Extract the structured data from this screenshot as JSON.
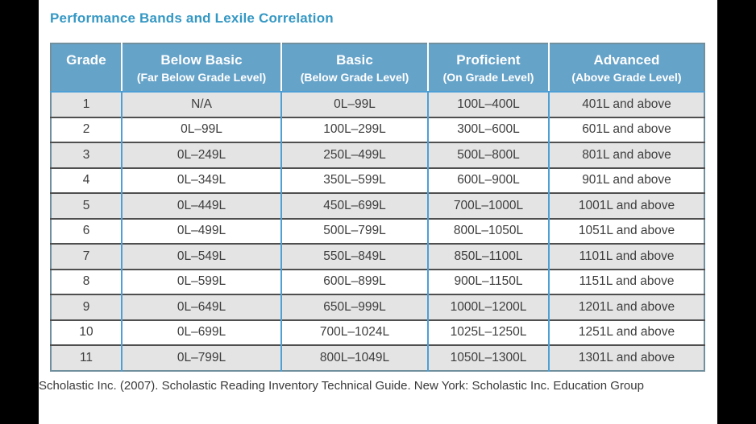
{
  "page": {
    "title": "Performance Bands and Lexile Correlation",
    "citation": "Scholastic Inc. (2007). Scholastic Reading Inventory Technical Guide. New York: Scholastic Inc. Education Group"
  },
  "colors": {
    "title_text": "#3598C4",
    "header_background": "#66A3C9",
    "header_text": "#FFFFFF",
    "row_alt_background": "#E4E4E4",
    "grid_vertical_blue": "#4D9FD6",
    "grid_horizontal_dark": "#4F4F4F",
    "outer_border": "#71909E",
    "cell_text": "#3D3D3D",
    "letterbox": "#000000"
  },
  "table": {
    "column_keys": [
      "grade",
      "below-basic",
      "basic",
      "proficient",
      "advanced"
    ],
    "columns": [
      {
        "label": "Grade",
        "sublabel": ""
      },
      {
        "label": "Below Basic",
        "sublabel": "(Far Below Grade Level)"
      },
      {
        "label": "Basic",
        "sublabel": "(Below Grade Level)"
      },
      {
        "label": "Proficient",
        "sublabel": "(On Grade Level)"
      },
      {
        "label": "Advanced",
        "sublabel": "(Above Grade Level)"
      }
    ],
    "rows": [
      [
        "1",
        "N/A",
        "0L–99L",
        "100L–400L",
        "401L and above"
      ],
      [
        "2",
        "0L–99L",
        "100L–299L",
        "300L–600L",
        "601L and above"
      ],
      [
        "3",
        "0L–249L",
        "250L–499L",
        "500L–800L",
        "801L and above"
      ],
      [
        "4",
        "0L–349L",
        "350L–599L",
        "600L–900L",
        "901L and above"
      ],
      [
        "5",
        "0L–449L",
        "450L–699L",
        "700L–1000L",
        "1001L and above"
      ],
      [
        "6",
        "0L–499L",
        "500L–799L",
        "800L–1050L",
        "1051L and above"
      ],
      [
        "7",
        "0L–549L",
        "550L–849L",
        "850L–1100L",
        "1101L and above"
      ],
      [
        "8",
        "0L–599L",
        "600L–899L",
        "900L–1150L",
        "1151L and above"
      ],
      [
        "9",
        "0L–649L",
        "650L–999L",
        "1000L–1200L",
        "1201L and above"
      ],
      [
        "10",
        "0L–699L",
        "700L–1024L",
        "1025L–1250L",
        "1251L and above"
      ],
      [
        "11",
        "0L–799L",
        "800L–1049L",
        "1050L–1300L",
        "1301L and above"
      ]
    ]
  }
}
